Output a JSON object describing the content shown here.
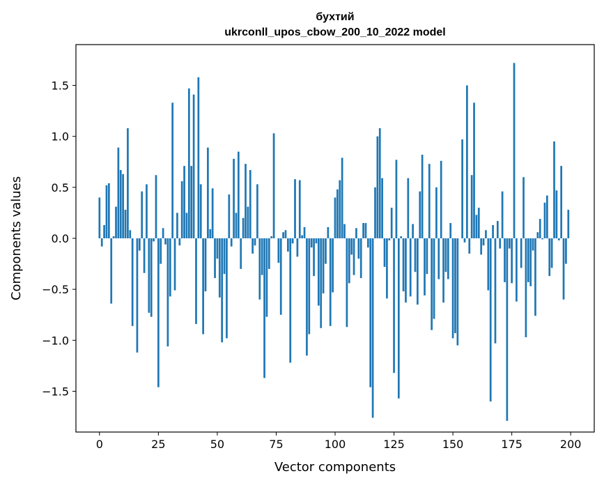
{
  "chart_data": {
    "type": "bar",
    "title": "бухтий",
    "subtitle": "ukrconll_upos_cbow_200_10_2022 model",
    "xlabel": "Vector components",
    "ylabel": "Components values",
    "xlim": [
      -10,
      210
    ],
    "ylim": [
      -1.9,
      1.9
    ],
    "xticks": [
      0,
      25,
      50,
      75,
      100,
      125,
      150,
      175,
      200
    ],
    "yticks": [
      -1.5,
      -1.0,
      -0.5,
      0.0,
      0.5,
      1.0,
      1.5
    ],
    "xtick_labels": [
      "0",
      "25",
      "50",
      "75",
      "100",
      "125",
      "150",
      "175",
      "200"
    ],
    "ytick_labels": [
      "−1.5",
      "−1.0",
      "−0.5",
      "0.0",
      "0.5",
      "1.0",
      "1.5"
    ],
    "bar_color": "#1f77b4",
    "grid": false,
    "values": [
      0.4,
      -0.08,
      0.13,
      0.52,
      0.54,
      -0.64,
      0.02,
      0.31,
      0.89,
      0.67,
      0.63,
      0.28,
      1.08,
      0.08,
      -0.86,
      0.0,
      -1.12,
      -0.12,
      0.46,
      -0.34,
      0.53,
      -0.73,
      -0.77,
      -0.03,
      0.62,
      -1.46,
      -0.25,
      0.1,
      -0.06,
      -1.06,
      -0.57,
      1.33,
      -0.51,
      0.25,
      -0.07,
      0.56,
      0.71,
      0.25,
      1.47,
      0.71,
      1.41,
      -0.84,
      1.58,
      0.53,
      -0.94,
      -0.52,
      0.89,
      0.09,
      0.49,
      -0.39,
      -0.2,
      -0.58,
      -1.02,
      -0.35,
      -0.98,
      0.43,
      -0.08,
      0.78,
      0.25,
      0.85,
      -0.3,
      0.2,
      0.73,
      0.31,
      0.67,
      -0.15,
      -0.07,
      0.53,
      -0.6,
      -0.36,
      -1.37,
      -0.77,
      -0.3,
      0.02,
      1.03,
      0.0,
      -0.24,
      -0.75,
      0.06,
      0.08,
      -0.13,
      -1.22,
      -0.05,
      0.58,
      -0.18,
      0.57,
      0.03,
      0.11,
      -1.15,
      -0.94,
      -0.09,
      -0.37,
      -0.05,
      -0.66,
      -0.88,
      -0.54,
      -0.25,
      0.11,
      -0.86,
      -0.53,
      0.4,
      0.48,
      0.57,
      0.79,
      0.14,
      -0.87,
      -0.44,
      -0.16,
      -0.36,
      0.1,
      -0.2,
      -0.39,
      0.15,
      0.15,
      -0.09,
      -1.46,
      -1.76,
      0.5,
      1.0,
      1.08,
      0.59,
      -0.28,
      -0.59,
      -0.02,
      0.3,
      -1.32,
      0.77,
      -1.57,
      0.02,
      -0.52,
      -0.63,
      0.59,
      -0.57,
      0.14,
      -0.33,
      -0.65,
      0.46,
      0.82,
      -0.56,
      -0.35,
      0.73,
      -0.9,
      -0.79,
      0.5,
      -0.4,
      0.76,
      -0.63,
      -0.33,
      -0.4,
      0.15,
      -0.98,
      -0.93,
      -1.05,
      0.0,
      0.97,
      -0.04,
      1.5,
      -0.15,
      0.62,
      1.33,
      0.23,
      0.3,
      -0.16,
      -0.07,
      0.08,
      -0.51,
      -1.6,
      0.13,
      -1.03,
      0.17,
      -0.1,
      0.46,
      -0.43,
      -1.79,
      -0.1,
      -0.44,
      1.72,
      -0.62,
      0.0,
      -0.29,
      0.6,
      -0.97,
      -0.43,
      -0.47,
      -0.12,
      -0.76,
      0.06,
      0.19,
      -0.01,
      0.35,
      0.42,
      -0.37,
      -0.29,
      0.95,
      0.47,
      -0.02,
      0.71,
      -0.6,
      -0.25,
      0.28
    ]
  }
}
